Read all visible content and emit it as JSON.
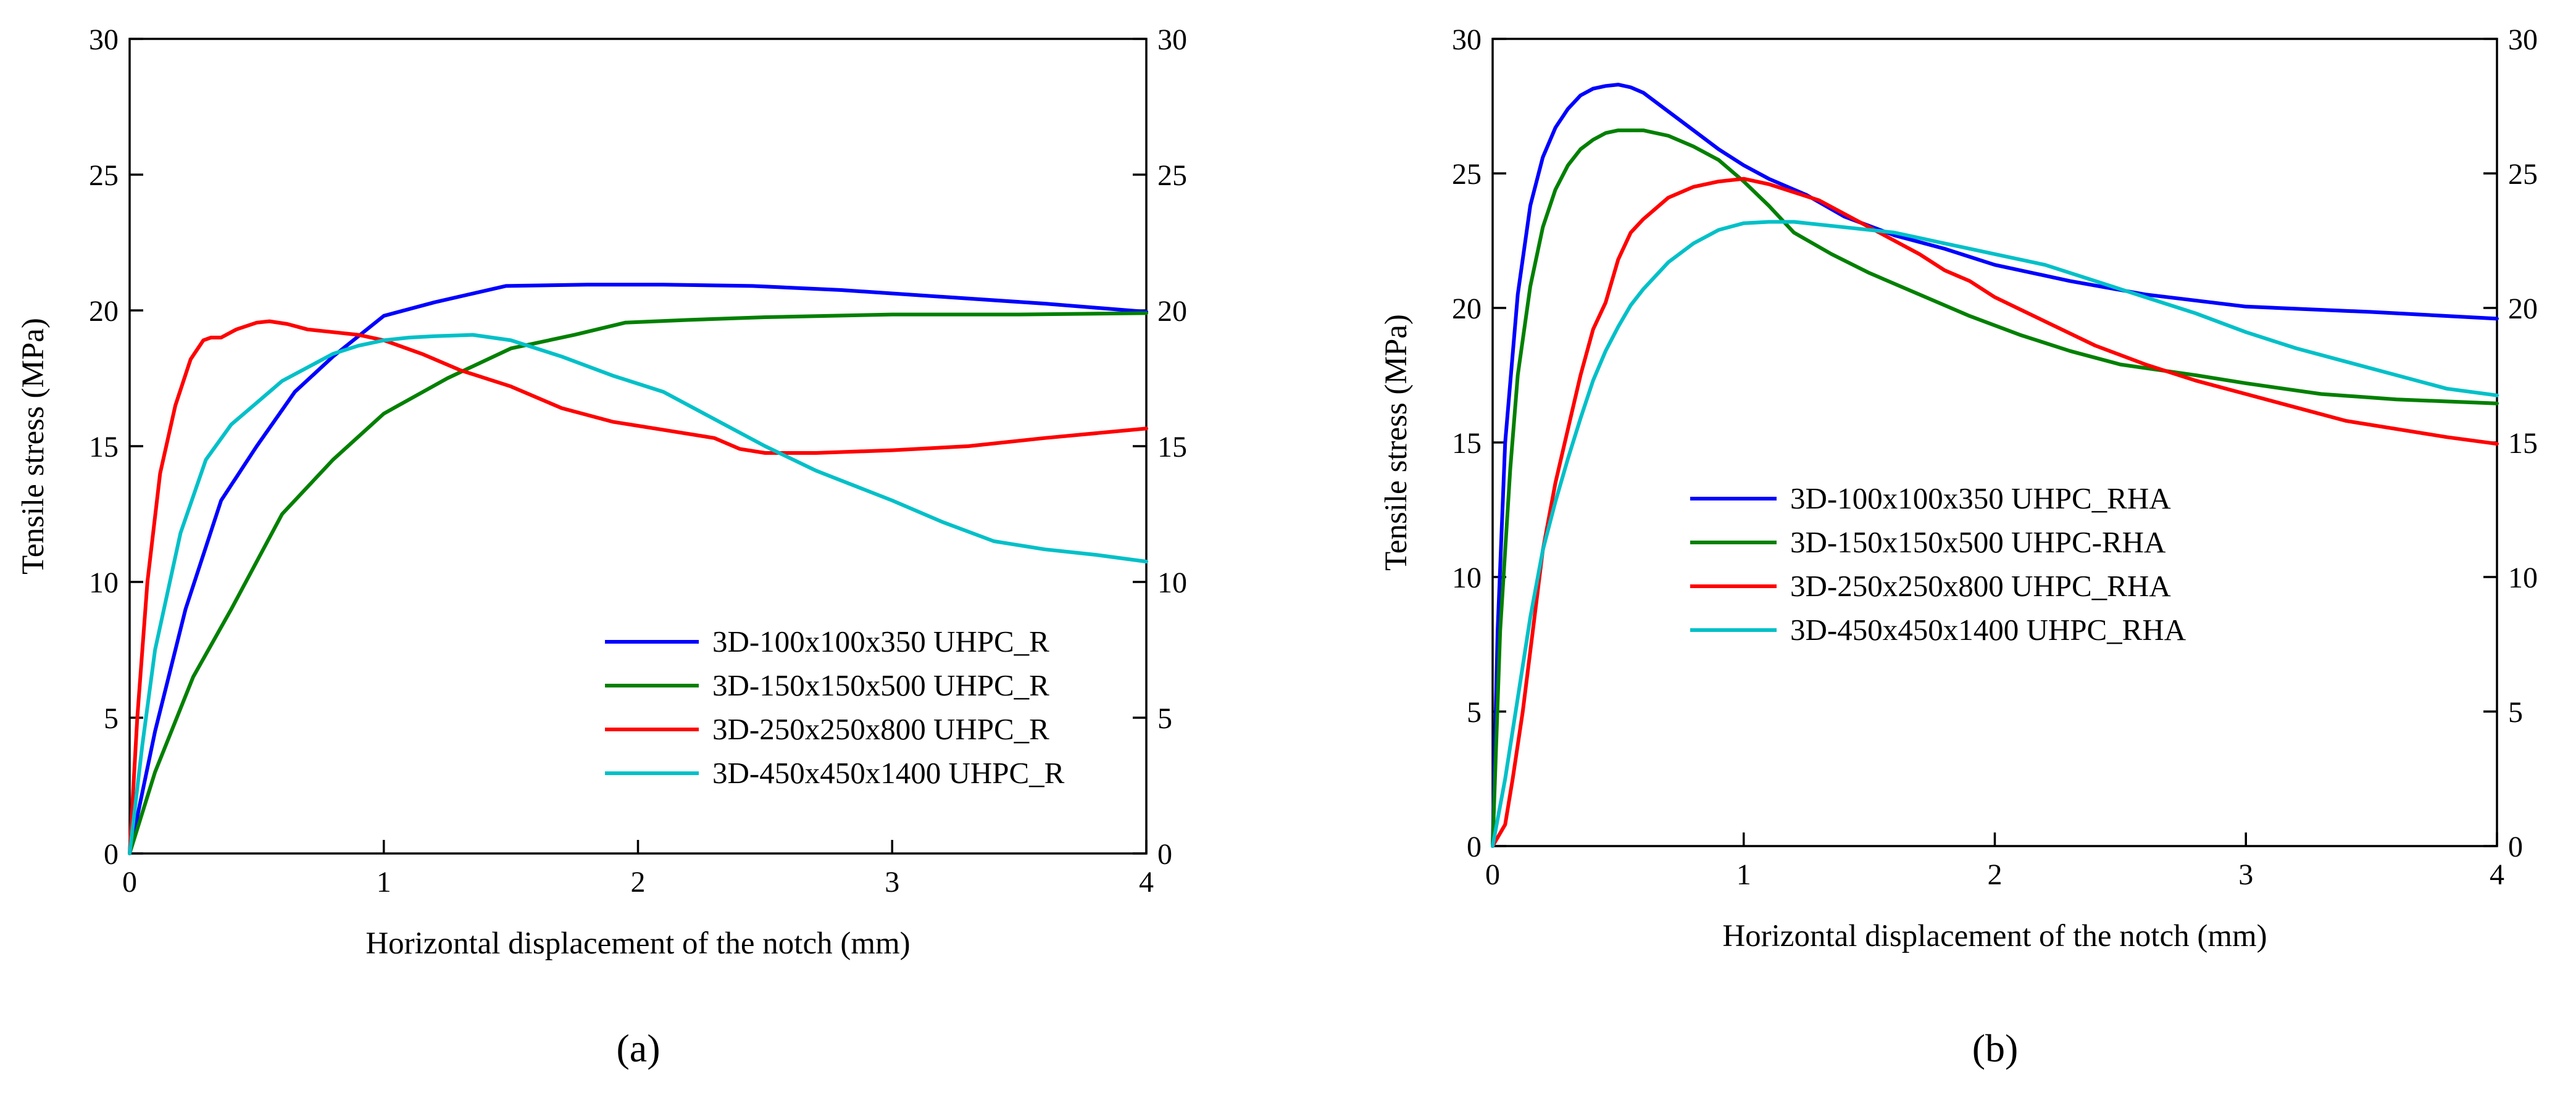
{
  "chart_data": [
    {
      "type": "line",
      "panel_label": "(a)",
      "xlabel": "Horizontal displacement of the notch (mm)",
      "ylabel": "Tensile stress (MPa)",
      "xlim": [
        0,
        4
      ],
      "ylim": [
        0,
        30
      ],
      "xticks": [
        0,
        1,
        2,
        3,
        4
      ],
      "yticks": [
        0,
        5,
        10,
        15,
        20,
        25,
        30
      ],
      "right_axis_ticks": [
        0,
        5,
        10,
        15,
        20,
        25,
        30
      ],
      "legend_position": "bottom-right",
      "series": [
        {
          "name": "3D-100x100x350 UHPC_R",
          "color": "#0000ff",
          "x": [
            0,
            0.1,
            0.22,
            0.36,
            0.5,
            0.65,
            0.8,
            1.0,
            1.2,
            1.48,
            1.8,
            2.1,
            2.45,
            2.8,
            3.2,
            3.6,
            4.0
          ],
          "y": [
            0,
            4.5,
            9.0,
            13.0,
            15.0,
            17.0,
            18.3,
            19.8,
            20.3,
            20.9,
            20.95,
            20.95,
            20.9,
            20.75,
            20.5,
            20.25,
            19.95
          ]
        },
        {
          "name": "3D-150x150x500 UHPC_R",
          "color": "#008000",
          "x": [
            0,
            0.1,
            0.25,
            0.4,
            0.6,
            0.8,
            1.0,
            1.25,
            1.5,
            1.75,
            1.95,
            2.2,
            2.5,
            3.0,
            3.5,
            4.0
          ],
          "y": [
            0,
            3.0,
            6.5,
            9.0,
            12.5,
            14.5,
            16.2,
            17.5,
            18.6,
            19.1,
            19.55,
            19.65,
            19.75,
            19.85,
            19.85,
            19.9
          ]
        },
        {
          "name": "3D-250x250x800 UHPC_R",
          "color": "#ff0000",
          "x": [
            0,
            0.03,
            0.07,
            0.12,
            0.18,
            0.24,
            0.29,
            0.32,
            0.36,
            0.42,
            0.5,
            0.55,
            0.62,
            0.7,
            0.8,
            0.9,
            1.0,
            1.15,
            1.3,
            1.5,
            1.7,
            1.9,
            2.1,
            2.3,
            2.4,
            2.5,
            2.7,
            3.0,
            3.3,
            3.6,
            4.0
          ],
          "y": [
            0,
            5.0,
            10.0,
            14.0,
            16.5,
            18.2,
            18.9,
            19.0,
            19.0,
            19.3,
            19.55,
            19.6,
            19.5,
            19.3,
            19.2,
            19.1,
            18.9,
            18.4,
            17.8,
            17.2,
            16.4,
            15.9,
            15.6,
            15.3,
            14.9,
            14.75,
            14.75,
            14.85,
            15.0,
            15.3,
            15.65
          ]
        },
        {
          "name": "3D-450x450x1400 UHPC_R",
          "color": "#00c0c8",
          "x": [
            0,
            0.05,
            0.1,
            0.2,
            0.3,
            0.4,
            0.5,
            0.6,
            0.7,
            0.8,
            0.9,
            1.0,
            1.1,
            1.2,
            1.35,
            1.5,
            1.7,
            1.9,
            2.1,
            2.3,
            2.5,
            2.7,
            3.0,
            3.2,
            3.4,
            3.6,
            3.8,
            4.0
          ],
          "y": [
            0,
            4.0,
            7.5,
            11.8,
            14.5,
            15.8,
            16.6,
            17.4,
            17.9,
            18.4,
            18.7,
            18.9,
            19.0,
            19.05,
            19.1,
            18.9,
            18.3,
            17.6,
            17.0,
            16.0,
            15.0,
            14.1,
            13.0,
            12.2,
            11.5,
            11.2,
            11.0,
            10.75
          ]
        }
      ]
    },
    {
      "type": "line",
      "panel_label": "(b)",
      "xlabel": "Horizontal displacement of the notch (mm)",
      "ylabel": "Tensile stress (MPa)",
      "xlim": [
        0,
        4
      ],
      "ylim": [
        0,
        30
      ],
      "xticks": [
        0,
        1,
        2,
        3,
        4
      ],
      "yticks": [
        0,
        5,
        10,
        15,
        20,
        25,
        30
      ],
      "right_axis_ticks": [
        0,
        5,
        10,
        15,
        20,
        25,
        30
      ],
      "legend_position": "center-left",
      "series": [
        {
          "name": "3D-100x100x350 UHPC_RHA",
          "color": "#0000ff",
          "x": [
            0,
            0.02,
            0.05,
            0.1,
            0.15,
            0.2,
            0.25,
            0.3,
            0.35,
            0.4,
            0.45,
            0.5,
            0.55,
            0.6,
            0.7,
            0.8,
            0.9,
            1.0,
            1.1,
            1.25,
            1.4,
            1.6,
            1.8,
            2.0,
            2.3,
            2.6,
            3.0,
            3.5,
            4.0
          ],
          "y": [
            0,
            8.0,
            15.0,
            20.5,
            23.8,
            25.6,
            26.7,
            27.4,
            27.9,
            28.15,
            28.25,
            28.3,
            28.2,
            28.0,
            27.3,
            26.6,
            25.9,
            25.3,
            24.8,
            24.2,
            23.4,
            22.7,
            22.2,
            21.6,
            21.0,
            20.5,
            20.05,
            19.85,
            19.6
          ]
        },
        {
          "name": "3D-150x150x500 UHPC-RHA",
          "color": "#008000",
          "x": [
            0,
            0.03,
            0.07,
            0.1,
            0.15,
            0.2,
            0.25,
            0.3,
            0.35,
            0.4,
            0.45,
            0.5,
            0.6,
            0.7,
            0.8,
            0.9,
            1.0,
            1.1,
            1.2,
            1.35,
            1.5,
            1.7,
            1.9,
            2.1,
            2.3,
            2.5,
            2.8,
            3.0,
            3.3,
            3.6,
            4.0
          ],
          "y": [
            0,
            8.0,
            14.0,
            17.5,
            20.8,
            23.0,
            24.4,
            25.3,
            25.9,
            26.25,
            26.5,
            26.6,
            26.6,
            26.4,
            26.0,
            25.5,
            24.7,
            23.8,
            22.8,
            22.0,
            21.3,
            20.5,
            19.7,
            19.0,
            18.4,
            17.9,
            17.5,
            17.2,
            16.8,
            16.6,
            16.45
          ]
        },
        {
          "name": "3D-250x250x800 UHPC_RHA",
          "color": "#ff0000",
          "x": [
            0,
            0.05,
            0.08,
            0.12,
            0.16,
            0.2,
            0.25,
            0.3,
            0.35,
            0.4,
            0.45,
            0.5,
            0.55,
            0.6,
            0.65,
            0.7,
            0.8,
            0.9,
            1.0,
            1.1,
            1.2,
            1.3,
            1.4,
            1.5,
            1.6,
            1.7,
            1.8,
            1.9,
            2.0,
            2.2,
            2.4,
            2.6,
            2.8,
            3.0,
            3.2,
            3.4,
            3.6,
            3.8,
            4.0
          ],
          "y": [
            0,
            0.8,
            2.5,
            5.0,
            8.0,
            11.0,
            13.5,
            15.5,
            17.5,
            19.2,
            20.2,
            21.8,
            22.8,
            23.3,
            23.7,
            24.1,
            24.5,
            24.7,
            24.8,
            24.6,
            24.3,
            24.0,
            23.5,
            23.0,
            22.5,
            22.0,
            21.4,
            21.0,
            20.4,
            19.5,
            18.6,
            17.9,
            17.3,
            16.8,
            16.3,
            15.8,
            15.5,
            15.2,
            14.95
          ]
        },
        {
          "name": "3D-450x450x1400 UHPC_RHA",
          "color": "#00c0c8",
          "x": [
            0,
            0.05,
            0.1,
            0.15,
            0.2,
            0.25,
            0.3,
            0.35,
            0.4,
            0.45,
            0.5,
            0.55,
            0.6,
            0.7,
            0.8,
            0.9,
            1.0,
            1.1,
            1.2,
            1.4,
            1.6,
            1.8,
            2.0,
            2.2,
            2.4,
            2.6,
            2.8,
            3.0,
            3.2,
            3.4,
            3.6,
            3.8,
            4.0
          ],
          "y": [
            0,
            2.5,
            5.5,
            8.5,
            11.0,
            12.8,
            14.4,
            15.9,
            17.3,
            18.4,
            19.3,
            20.1,
            20.7,
            21.7,
            22.4,
            22.9,
            23.15,
            23.2,
            23.2,
            23.0,
            22.8,
            22.4,
            22.0,
            21.6,
            21.0,
            20.4,
            19.8,
            19.1,
            18.5,
            18.0,
            17.5,
            17.0,
            16.75
          ]
        }
      ]
    }
  ]
}
